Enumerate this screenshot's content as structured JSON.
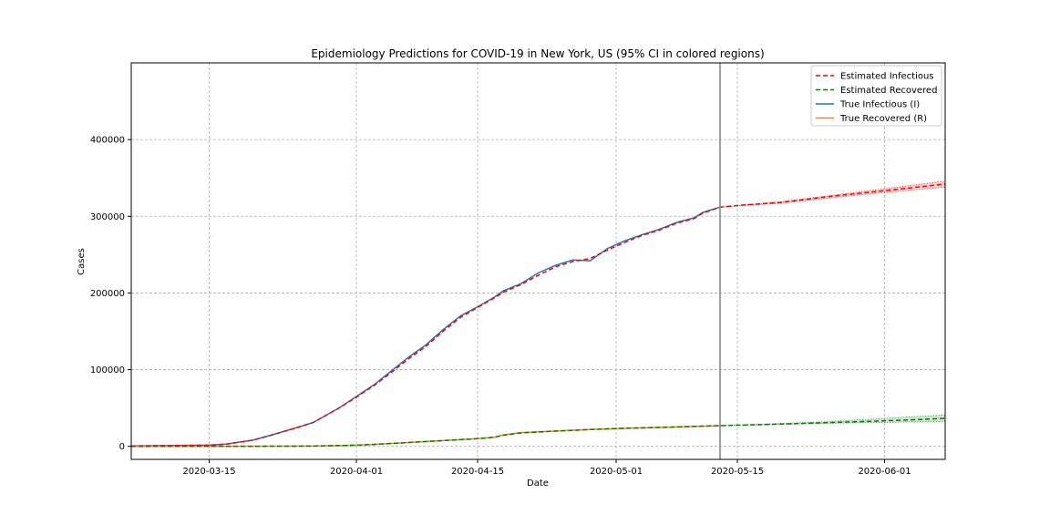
{
  "chart_data": {
    "type": "line",
    "title": "Epidemiology Predictions for COVID-19 in New York, US (95% CI in colored regions)",
    "xlabel": "Date",
    "ylabel": "Cases",
    "xlim": [
      "2020-03-06",
      "2020-06-08"
    ],
    "ylim": [
      -17000,
      500000
    ],
    "x_ticks": [
      "2020-03-15",
      "2020-04-01",
      "2020-04-15",
      "2020-05-01",
      "2020-05-15",
      "2020-06-01"
    ],
    "y_ticks": [
      0,
      100000,
      200000,
      300000,
      400000
    ],
    "grid": true,
    "legend_position": "upper right",
    "forecast_start": "2020-05-13",
    "colors": {
      "estimated_infectious": "#ff0000",
      "estimated_recovered": "#008000",
      "true_infectious": "#1f77b4",
      "true_recovered": "#ff7f0e",
      "cutoff_line": "#808080"
    },
    "legend": [
      {
        "label": "Estimated Infectious",
        "series": "estimated_infectious",
        "style": "dashed"
      },
      {
        "label": "Estimated Recovered",
        "series": "estimated_recovered",
        "style": "dashed"
      },
      {
        "label": "True Infectious (I)",
        "series": "true_infectious",
        "style": "solid"
      },
      {
        "label": "True Recovered (R)",
        "series": "true_recovered",
        "style": "solid"
      }
    ],
    "series": [
      {
        "name": "True Infectious (I)",
        "key": "true_infectious",
        "points": [
          [
            "2020-03-06",
            500
          ],
          [
            "2020-03-10",
            900
          ],
          [
            "2020-03-15",
            1500
          ],
          [
            "2020-03-17",
            3000
          ],
          [
            "2020-03-20",
            8000
          ],
          [
            "2020-03-22",
            14000
          ],
          [
            "2020-03-25",
            24000
          ],
          [
            "2020-03-27",
            31000
          ],
          [
            "2020-03-30",
            50000
          ],
          [
            "2020-04-01",
            65000
          ],
          [
            "2020-04-03",
            80000
          ],
          [
            "2020-04-05",
            98000
          ],
          [
            "2020-04-07",
            116000
          ],
          [
            "2020-04-09",
            132000
          ],
          [
            "2020-04-11",
            152000
          ],
          [
            "2020-04-13",
            170000
          ],
          [
            "2020-04-15",
            182000
          ],
          [
            "2020-04-17",
            195000
          ],
          [
            "2020-04-18",
            203000
          ],
          [
            "2020-04-20",
            212000
          ],
          [
            "2020-04-22",
            226000
          ],
          [
            "2020-04-24",
            236000
          ],
          [
            "2020-04-26",
            243000
          ],
          [
            "2020-04-28",
            242000
          ],
          [
            "2020-04-30",
            258000
          ],
          [
            "2020-05-02",
            268000
          ],
          [
            "2020-05-04",
            276000
          ],
          [
            "2020-05-06",
            283000
          ],
          [
            "2020-05-08",
            292000
          ],
          [
            "2020-05-10",
            298000
          ],
          [
            "2020-05-11",
            305000
          ],
          [
            "2020-05-13",
            312000
          ]
        ]
      },
      {
        "name": "Estimated Infectious",
        "key": "estimated_infectious",
        "points": [
          [
            "2020-03-06",
            500
          ],
          [
            "2020-03-10",
            900
          ],
          [
            "2020-03-15",
            1500
          ],
          [
            "2020-03-17",
            3000
          ],
          [
            "2020-03-20",
            8000
          ],
          [
            "2020-03-22",
            14000
          ],
          [
            "2020-03-25",
            24000
          ],
          [
            "2020-03-27",
            31000
          ],
          [
            "2020-03-30",
            50000
          ],
          [
            "2020-04-01",
            64000
          ],
          [
            "2020-04-03",
            79000
          ],
          [
            "2020-04-05",
            96000
          ],
          [
            "2020-04-07",
            114000
          ],
          [
            "2020-04-09",
            130000
          ],
          [
            "2020-04-11",
            150000
          ],
          [
            "2020-04-13",
            168000
          ],
          [
            "2020-04-15",
            181000
          ],
          [
            "2020-04-17",
            194000
          ],
          [
            "2020-04-18",
            201000
          ],
          [
            "2020-04-20",
            211000
          ],
          [
            "2020-04-22",
            223000
          ],
          [
            "2020-04-24",
            234000
          ],
          [
            "2020-04-26",
            241000
          ],
          [
            "2020-04-28",
            245000
          ],
          [
            "2020-04-30",
            256000
          ],
          [
            "2020-05-02",
            266000
          ],
          [
            "2020-05-04",
            275000
          ],
          [
            "2020-05-06",
            282000
          ],
          [
            "2020-05-08",
            291000
          ],
          [
            "2020-05-10",
            297000
          ],
          [
            "2020-05-11",
            304000
          ],
          [
            "2020-05-13",
            312000
          ],
          [
            "2020-05-16",
            315000
          ],
          [
            "2020-05-20",
            318000
          ],
          [
            "2020-05-25",
            325000
          ],
          [
            "2020-05-30",
            331000
          ],
          [
            "2020-06-04",
            337000
          ],
          [
            "2020-06-08",
            342000
          ]
        ],
        "ci_upper": [
          [
            "2020-05-13",
            312000
          ],
          [
            "2020-05-20",
            319000
          ],
          [
            "2020-05-30",
            333000
          ],
          [
            "2020-06-08",
            346000
          ]
        ],
        "ci_lower": [
          [
            "2020-05-13",
            312000
          ],
          [
            "2020-05-20",
            317000
          ],
          [
            "2020-05-30",
            329000
          ],
          [
            "2020-06-08",
            338000
          ]
        ]
      },
      {
        "name": "True Recovered (R)",
        "key": "true_recovered",
        "points": [
          [
            "2020-03-06",
            0
          ],
          [
            "2020-03-20",
            100
          ],
          [
            "2020-03-27",
            400
          ],
          [
            "2020-04-01",
            1500
          ],
          [
            "2020-04-03",
            2500
          ],
          [
            "2020-04-07",
            5000
          ],
          [
            "2020-04-11",
            7500
          ],
          [
            "2020-04-15",
            10000
          ],
          [
            "2020-04-17",
            12000
          ],
          [
            "2020-04-18",
            15000
          ],
          [
            "2020-04-20",
            18000
          ],
          [
            "2020-04-24",
            20000
          ],
          [
            "2020-04-28",
            22000
          ],
          [
            "2020-05-02",
            23500
          ],
          [
            "2020-05-07",
            25000
          ],
          [
            "2020-05-13",
            27000
          ]
        ]
      },
      {
        "name": "Estimated Recovered",
        "key": "estimated_recovered",
        "points": [
          [
            "2020-03-06",
            0
          ],
          [
            "2020-03-20",
            100
          ],
          [
            "2020-03-27",
            400
          ],
          [
            "2020-04-01",
            1500
          ],
          [
            "2020-04-03",
            2500
          ],
          [
            "2020-04-07",
            5000
          ],
          [
            "2020-04-11",
            7500
          ],
          [
            "2020-04-15",
            10000
          ],
          [
            "2020-04-17",
            12000
          ],
          [
            "2020-04-18",
            14500
          ],
          [
            "2020-04-20",
            17500
          ],
          [
            "2020-04-24",
            19800
          ],
          [
            "2020-04-28",
            22000
          ],
          [
            "2020-05-02",
            23500
          ],
          [
            "2020-05-07",
            25000
          ],
          [
            "2020-05-13",
            27000
          ],
          [
            "2020-05-20",
            29000
          ],
          [
            "2020-05-27",
            31500
          ],
          [
            "2020-06-03",
            34000
          ],
          [
            "2020-06-08",
            36500
          ]
        ],
        "ci_upper": [
          [
            "2020-05-13",
            27000
          ],
          [
            "2020-05-25",
            32000
          ],
          [
            "2020-06-08",
            41000
          ]
        ],
        "ci_lower": [
          [
            "2020-05-13",
            27000
          ],
          [
            "2020-05-25",
            30000
          ],
          [
            "2020-06-08",
            32500
          ]
        ]
      }
    ]
  }
}
